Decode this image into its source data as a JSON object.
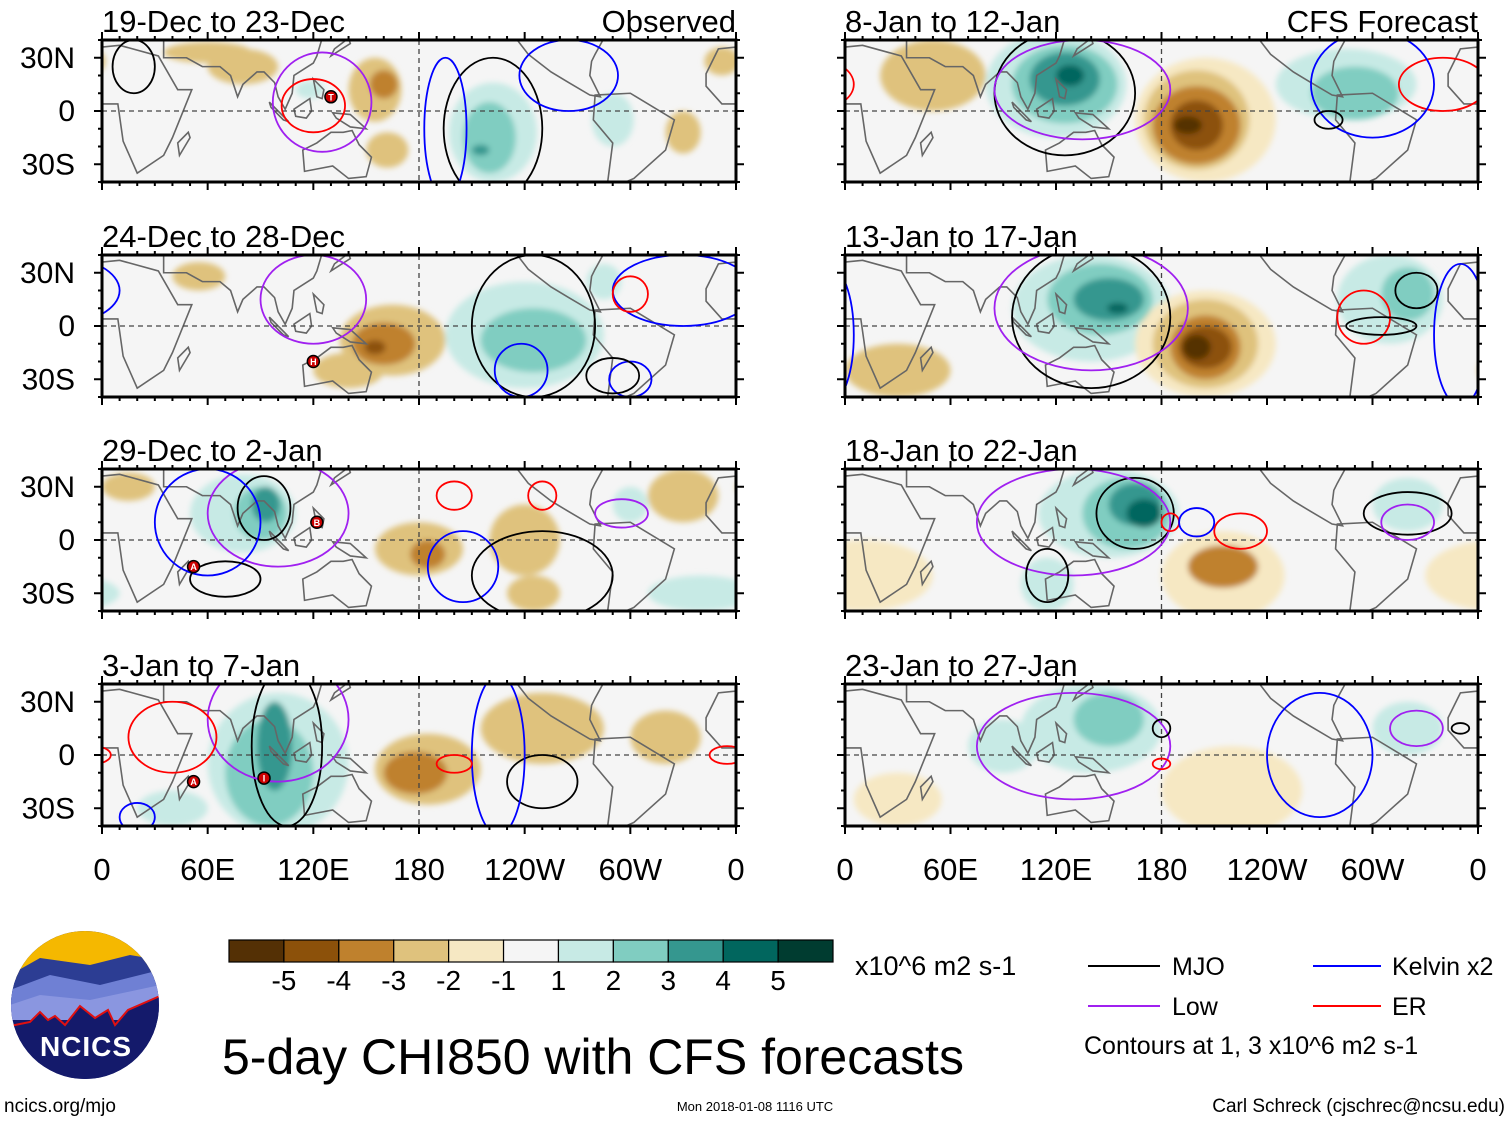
{
  "chart_data": {
    "type": "heatmap",
    "title": "5-day CHI850 with CFS forecasts",
    "units": "x10^6 m2 s-1",
    "lon_ticks": [
      "0",
      "60E",
      "120E",
      "180",
      "120W",
      "60W",
      "0"
    ],
    "lat_ticks": [
      "30N",
      "0",
      "30S"
    ],
    "lat_range": [
      -40,
      40
    ],
    "lon_range": [
      0,
      360
    ],
    "colorbar": {
      "labels": [
        "-5",
        "-4",
        "-3",
        "-2",
        "-1",
        "1",
        "2",
        "3",
        "4",
        "5"
      ],
      "colors": [
        "#543005",
        "#8c510a",
        "#bf812d",
        "#dfc27d",
        "#f6e8c3",
        "#f5f5f5",
        "#c7eae5",
        "#80cdc1",
        "#35978f",
        "#01665e",
        "#003c30"
      ]
    },
    "contour_legend": [
      {
        "key": "mjo",
        "label": "MJO",
        "color": "#000000"
      },
      {
        "key": "kelvin",
        "label": "Kelvin x2",
        "color": "#0000ff"
      },
      {
        "key": "low",
        "label": "Low",
        "color": "#a020f0"
      },
      {
        "key": "er",
        "label": "ER",
        "color": "#ff0000"
      }
    ],
    "contour_note": "Contours at 1, 3 x10^6 m2 s-1",
    "panels": [
      {
        "title": "19-Dec to 23-Dec",
        "tag": "Observed",
        "anomalies": [
          [
            80,
            25,
            20,
            10,
            -2
          ],
          [
            60,
            33,
            25,
            6,
            -2
          ],
          [
            155,
            12,
            15,
            18,
            -2
          ],
          [
            160,
            15,
            8,
            8,
            -3
          ],
          [
            118,
            12,
            8,
            5,
            1
          ],
          [
            222,
            -12,
            25,
            28,
            1
          ],
          [
            220,
            -15,
            15,
            20,
            2
          ],
          [
            215,
            -22,
            5,
            3,
            3
          ],
          [
            162,
            -22,
            12,
            10,
            -2
          ],
          [
            290,
            -5,
            12,
            15,
            1
          ],
          [
            330,
            -12,
            10,
            12,
            -2
          ],
          [
            352,
            28,
            10,
            8,
            -2
          ]
        ],
        "contours": [
          [
            "er",
            120,
            3,
            18,
            15
          ],
          [
            "low",
            125,
            5,
            28,
            28
          ],
          [
            "mjo",
            222,
            -10,
            28,
            40
          ],
          [
            "mjo",
            18,
            25,
            12,
            15
          ],
          [
            "kelvin",
            195,
            -10,
            12,
            40
          ],
          [
            "kelvin",
            265,
            20,
            28,
            20
          ]
        ],
        "cyclones": [
          [
            "T",
            130,
            8
          ]
        ]
      },
      {
        "title": "24-Dec to 28-Dec",
        "tag": "",
        "anomalies": [
          [
            165,
            -8,
            30,
            20,
            -2
          ],
          [
            160,
            -10,
            18,
            12,
            -3
          ],
          [
            155,
            -12,
            6,
            4,
            -4
          ],
          [
            240,
            -5,
            45,
            30,
            1
          ],
          [
            245,
            -8,
            30,
            18,
            2
          ],
          [
            285,
            25,
            10,
            10,
            1
          ],
          [
            55,
            28,
            15,
            8,
            -2
          ],
          [
            140,
            -25,
            20,
            10,
            -2
          ]
        ],
        "contours": [
          [
            "mjo",
            245,
            0,
            35,
            40
          ],
          [
            "low",
            120,
            15,
            30,
            25
          ],
          [
            "kelvin",
            330,
            20,
            40,
            20
          ],
          [
            "kelvin",
            238,
            -25,
            15,
            15
          ],
          [
            "kelvin",
            300,
            -30,
            12,
            10
          ],
          [
            "er",
            300,
            18,
            10,
            10
          ],
          [
            "mjo",
            290,
            -28,
            15,
            10
          ]
        ],
        "cyclones": [
          [
            "H",
            120,
            -20
          ]
        ]
      },
      {
        "title": "29-Dec to 2-Jan",
        "tag": "",
        "anomalies": [
          [
            80,
            15,
            30,
            22,
            1
          ],
          [
            90,
            15,
            15,
            15,
            2
          ],
          [
            93,
            20,
            8,
            10,
            3
          ],
          [
            15,
            30,
            15,
            8,
            -2
          ],
          [
            180,
            -5,
            25,
            15,
            -2
          ],
          [
            185,
            -8,
            10,
            8,
            -3
          ],
          [
            240,
            0,
            20,
            20,
            -2
          ],
          [
            300,
            20,
            10,
            10,
            1
          ],
          [
            330,
            25,
            20,
            15,
            -2
          ],
          [
            340,
            -30,
            30,
            10,
            1
          ],
          [
            245,
            -30,
            15,
            10,
            -2
          ]
        ],
        "contours": [
          [
            "mjo",
            92,
            18,
            15,
            18
          ],
          [
            "low",
            100,
            15,
            40,
            30
          ],
          [
            "kelvin",
            205,
            -15,
            20,
            20
          ],
          [
            "kelvin",
            60,
            10,
            30,
            30
          ],
          [
            "er",
            200,
            25,
            10,
            8
          ],
          [
            "er",
            250,
            25,
            8,
            8
          ],
          [
            "mjo",
            250,
            -20,
            40,
            25
          ],
          [
            "mjo",
            70,
            -22,
            20,
            10
          ],
          [
            "low",
            295,
            15,
            15,
            8
          ]
        ],
        "cyclones": [
          [
            "A",
            52,
            -15
          ],
          [
            "B",
            122,
            10
          ]
        ]
      },
      {
        "title": "3-Jan to 7-Jan",
        "tag": "",
        "anomalies": [
          [
            100,
            -5,
            40,
            40,
            1
          ],
          [
            95,
            -10,
            25,
            30,
            2
          ],
          [
            98,
            5,
            10,
            25,
            3
          ],
          [
            185,
            -8,
            30,
            20,
            -2
          ],
          [
            178,
            -10,
            18,
            12,
            -3
          ],
          [
            40,
            -30,
            20,
            10,
            1
          ],
          [
            250,
            15,
            35,
            20,
            -2
          ],
          [
            320,
            10,
            20,
            15,
            -2
          ]
        ],
        "contours": [
          [
            "mjo",
            105,
            5,
            20,
            45
          ],
          [
            "mjo",
            250,
            -15,
            20,
            15
          ],
          [
            "low",
            100,
            20,
            40,
            35
          ],
          [
            "er",
            40,
            10,
            25,
            20
          ],
          [
            "kelvin",
            225,
            0,
            15,
            45
          ],
          [
            "er",
            200,
            -5,
            10,
            5
          ],
          [
            "kelvin",
            20,
            -35,
            10,
            8
          ],
          [
            "er",
            355,
            0,
            10,
            5
          ]
        ],
        "cyclones": [
          [
            "A",
            52,
            -15
          ],
          [
            "I",
            92,
            -13
          ]
        ]
      },
      {
        "title": "8-Jan to 12-Jan",
        "tag": "CFS Forecast",
        "anomalies": [
          [
            120,
            15,
            40,
            30,
            1
          ],
          [
            125,
            15,
            30,
            22,
            2
          ],
          [
            125,
            18,
            20,
            15,
            3
          ],
          [
            128,
            20,
            8,
            6,
            4
          ],
          [
            205,
            -5,
            40,
            35,
            -1
          ],
          [
            200,
            -5,
            30,
            28,
            -2
          ],
          [
            200,
            -8,
            25,
            22,
            -3
          ],
          [
            200,
            -8,
            15,
            14,
            -4
          ],
          [
            195,
            -8,
            8,
            5,
            -5
          ],
          [
            285,
            15,
            40,
            20,
            1
          ],
          [
            290,
            10,
            25,
            15,
            2
          ],
          [
            50,
            20,
            30,
            20,
            -2
          ]
        ],
        "contours": [
          [
            "mjo",
            125,
            10,
            40,
            35
          ],
          [
            "low",
            135,
            12,
            50,
            28
          ],
          [
            "er",
            340,
            15,
            25,
            15
          ],
          [
            "kelvin",
            300,
            15,
            35,
            30
          ],
          [
            "mjo",
            275,
            -5,
            8,
            5
          ]
        ],
        "cyclones": []
      },
      {
        "title": "13-Jan to 17-Jan",
        "tag": "",
        "anomalies": [
          [
            140,
            10,
            45,
            30,
            1
          ],
          [
            145,
            15,
            30,
            20,
            2
          ],
          [
            150,
            15,
            20,
            12,
            3
          ],
          [
            155,
            10,
            6,
            3,
            4
          ],
          [
            205,
            -10,
            40,
            30,
            -1
          ],
          [
            205,
            -10,
            30,
            25,
            -2
          ],
          [
            205,
            -12,
            20,
            18,
            -3
          ],
          [
            205,
            -12,
            15,
            12,
            -4
          ],
          [
            200,
            -12,
            8,
            7,
            -5
          ],
          [
            310,
            15,
            30,
            25,
            1
          ],
          [
            320,
            18,
            15,
            15,
            2
          ],
          [
            30,
            -25,
            30,
            15,
            -2
          ]
        ],
        "contours": [
          [
            "mjo",
            140,
            5,
            45,
            40
          ],
          [
            "low",
            140,
            10,
            55,
            35
          ],
          [
            "er",
            295,
            5,
            15,
            15
          ],
          [
            "mjo",
            305,
            0,
            20,
            5
          ],
          [
            "mjo",
            325,
            20,
            12,
            10
          ],
          [
            "kelvin",
            350,
            -5,
            15,
            40
          ]
        ],
        "cyclones": []
      },
      {
        "title": "18-Jan to 22-Jan",
        "tag": "",
        "anomalies": [
          [
            150,
            15,
            40,
            25,
            1
          ],
          [
            160,
            15,
            25,
            20,
            2
          ],
          [
            165,
            20,
            15,
            12,
            3
          ],
          [
            170,
            15,
            10,
            8,
            4
          ],
          [
            115,
            -25,
            15,
            15,
            1
          ],
          [
            215,
            -20,
            35,
            25,
            -1
          ],
          [
            215,
            -15,
            20,
            12,
            -3
          ],
          [
            10,
            -20,
            40,
            20,
            -1
          ],
          [
            320,
            20,
            20,
            15,
            1
          ]
        ],
        "contours": [
          [
            "mjo",
            165,
            15,
            22,
            20
          ],
          [
            "low",
            130,
            10,
            55,
            30
          ],
          [
            "er",
            185,
            10,
            5,
            5
          ],
          [
            "er",
            225,
            5,
            15,
            10
          ],
          [
            "kelvin",
            200,
            10,
            10,
            8
          ],
          [
            "mjo",
            115,
            -20,
            12,
            15
          ],
          [
            "mjo",
            320,
            15,
            25,
            12
          ],
          [
            "low",
            320,
            10,
            15,
            10
          ]
        ],
        "cyclones": []
      },
      {
        "title": "23-Jan to 27-Jan",
        "tag": "",
        "anomalies": [
          [
            140,
            15,
            40,
            25,
            1
          ],
          [
            150,
            20,
            20,
            15,
            2
          ],
          [
            220,
            -20,
            40,
            25,
            -1
          ],
          [
            30,
            -25,
            25,
            15,
            -1
          ],
          [
            320,
            15,
            20,
            15,
            1
          ],
          [
            90,
            5,
            20,
            15,
            1
          ]
        ],
        "contours": [
          [
            "low",
            130,
            5,
            55,
            30
          ],
          [
            "kelvin",
            270,
            0,
            30,
            35
          ],
          [
            "mjo",
            180,
            15,
            5,
            5
          ],
          [
            "er",
            180,
            -5,
            5,
            3
          ],
          [
            "low",
            325,
            15,
            15,
            10
          ],
          [
            "mjo",
            350,
            15,
            5,
            3
          ]
        ],
        "cyclones": []
      }
    ]
  },
  "footer": {
    "logo_text": "NCICS",
    "site": "ncics.org/mjo",
    "timestamp": "Mon 2018-01-08 1116 UTC",
    "author": "Carl Schreck (cjschrec@ncsu.edu)"
  }
}
